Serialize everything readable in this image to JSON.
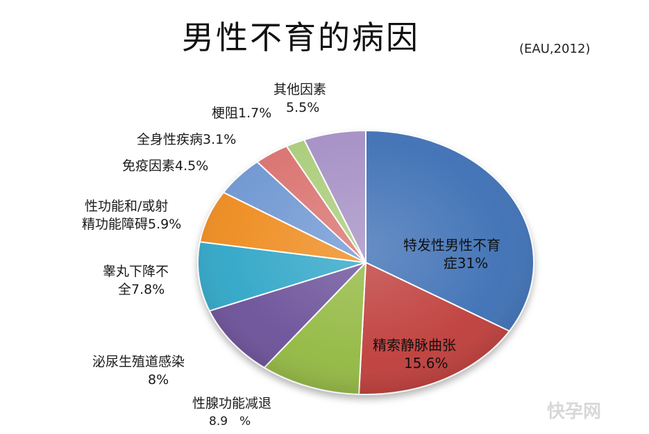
{
  "title": "男性不育的病因",
  "subtitle": "(EAU,2012)",
  "watermark": "快孕网",
  "chart_data": {
    "type": "pie",
    "title": "男性不育的病因",
    "subtitle": "(EAU,2012)",
    "start_angle_deg": 0,
    "direction": "clockwise",
    "slices": [
      {
        "label": "特发性男性不育症31%",
        "value": 31.0,
        "color": "#3A6EB4"
      },
      {
        "label": "精索静脉曲张15.6%",
        "value": 15.6,
        "color": "#BE3B37"
      },
      {
        "label": "性腺功能减退8.9%",
        "value": 8.9,
        "color": "#92B840"
      },
      {
        "label": "泌尿生殖道感染8%",
        "value": 8.0,
        "color": "#6A4F98"
      },
      {
        "label": "睾丸下降不全7.8%",
        "value": 7.8,
        "color": "#2EA5C7"
      },
      {
        "label": "性功能和/或射精功能障碍5.9%",
        "value": 5.9,
        "color": "#EE8A1E"
      },
      {
        "label": "免疫因素4.5%",
        "value": 4.5,
        "color": "#6E96D2"
      },
      {
        "label": "全身性疾病3.1%",
        "value": 3.1,
        "color": "#D9716E"
      },
      {
        "label": "梗阻1.7%",
        "value": 1.7,
        "color": "#A9CC78"
      },
      {
        "label": "其他因素5.5%",
        "value": 5.5,
        "color": "#A48EC4"
      }
    ],
    "labels": {
      "idiopathic_1": "特发性男性不育",
      "idiopathic_2": "症31%",
      "varicocele_1": "精索静脉曲张",
      "varicocele_2": "15.6%",
      "hypogonadism_1": "性腺功能减退",
      "hypogonadism_2": "8.9　%",
      "infection_1": "泌尿生殖道感染",
      "infection_2": "8%",
      "cryptorchid_1": "睾丸下降不",
      "cryptorchid_2": "全7.8%",
      "sexual_1": "性功能和/或射",
      "sexual_2": "精功能障碍5.9%",
      "immune": "免疫因素4.5%",
      "systemic": "全身性疾病3.1%",
      "obstruction": "梗阻1.7%",
      "other_1": "其他因素",
      "other_2": "5.5%"
    }
  }
}
